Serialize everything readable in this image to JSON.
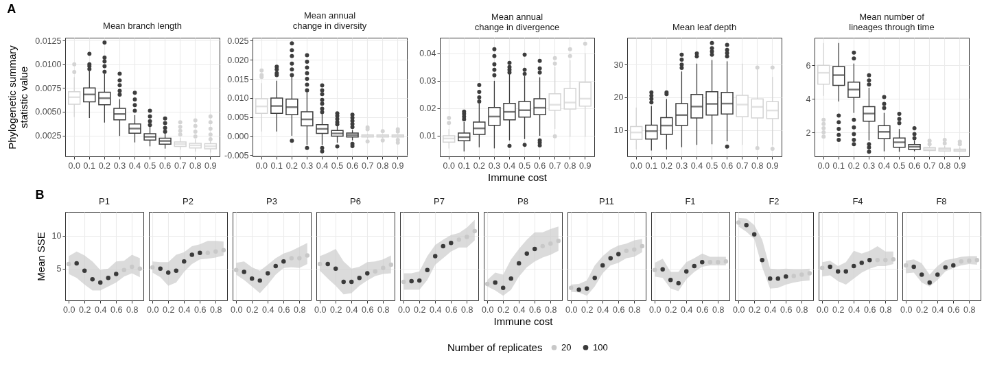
{
  "chart_data": [
    {
      "type": "box",
      "title": "Mean branch length",
      "ylabel": "Phylogenetic summary\nstatistic value",
      "annotations": [
        "A"
      ],
      "grid": true,
      "categories": [
        "0.0",
        "0.1",
        "0.2",
        "0.3",
        "0.4",
        "0.5",
        "0.6",
        "0.7",
        "0.8",
        "0.9"
      ],
      "colors": [
        "#d4d4d4",
        "#3d3d3d",
        "#3d3d3d",
        "#3d3d3d",
        "#3d3d3d",
        "#3d3d3d",
        "#3d3d3d",
        "#d4d4d4",
        "#d4d4d4",
        "#d4d4d4"
      ],
      "ylim": [
        0.0003,
        0.0128
      ],
      "yticks": [
        {
          "value": 0.0025,
          "label": "0.0025"
        },
        {
          "value": 0.005,
          "label": "0.0050"
        },
        {
          "value": 0.0075,
          "label": "0.0075"
        },
        {
          "value": 0.01,
          "label": "0.0100"
        },
        {
          "value": 0.0125,
          "label": "0.0125"
        }
      ],
      "boxes": [
        {
          "low": 0.00444,
          "q1": 0.0058,
          "median": 0.00653,
          "q3": 0.00711,
          "high": 0.00864,
          "outliers": [
            0.01,
            0.00918
          ]
        },
        {
          "low": 0.00434,
          "q1": 0.00604,
          "median": 0.00682,
          "q3": 0.0075,
          "high": 0.0093,
          "outliers": [
            0.0111,
            0.01,
            0.0098,
            0.0095
          ]
        },
        {
          "low": 0.00386,
          "q1": 0.00573,
          "median": 0.00643,
          "q3": 0.00706,
          "high": 0.009,
          "outliers": [
            0.0123,
            0.0107,
            0.0103,
            0.0098,
            0.0092
          ]
        },
        {
          "low": 0.00245,
          "q1": 0.00415,
          "median": 0.00476,
          "q3": 0.00536,
          "high": 0.00633,
          "outliers": [
            0.009,
            0.0083,
            0.0078,
            0.0072,
            0.0068
          ]
        },
        {
          "low": 0.00177,
          "q1": 0.00274,
          "median": 0.00323,
          "q3": 0.00371,
          "high": 0.00464,
          "outliers": [
            0.007,
            0.0063,
            0.0057,
            0.0051
          ]
        },
        {
          "low": 0.00136,
          "q1": 0.00202,
          "median": 0.00236,
          "q3": 0.00269,
          "high": 0.00354,
          "outliers": [
            0.0051,
            0.0045,
            0.004,
            0.0036
          ]
        },
        {
          "low": 0.00112,
          "q1": 0.00158,
          "median": 0.00192,
          "q3": 0.00221,
          "high": 0.00269,
          "outliers": [
            0.0043,
            0.0038,
            0.0033,
            0.0029
          ]
        },
        {
          "low": 0.001,
          "q1": 0.00134,
          "median": 0.0016,
          "q3": 0.00182,
          "high": 0.00226,
          "outliers": [
            0.0039,
            0.0034,
            0.003,
            0.0026
          ]
        },
        {
          "low": 0.0008,
          "q1": 0.00119,
          "median": 0.00146,
          "q3": 0.00168,
          "high": 0.00209,
          "outliers": [
            0.0041,
            0.0035,
            0.0029,
            0.0024
          ]
        },
        {
          "low": 0.0007,
          "q1": 0.0011,
          "median": 0.00136,
          "q3": 0.00163,
          "high": 0.00197,
          "outliers": [
            0.0045,
            0.0039,
            0.0032,
            0.0026,
            0.0021
          ]
        }
      ]
    },
    {
      "type": "box",
      "title": "Mean annual\nchange in diversity",
      "grid": true,
      "categories": [
        "0.0",
        "0.1",
        "0.2",
        "0.3",
        "0.4",
        "0.5",
        "0.6",
        "0.7",
        "0.8",
        "0.9"
      ],
      "colors": [
        "#d4d4d4",
        "#3d3d3d",
        "#3d3d3d",
        "#3d3d3d",
        "#3d3d3d",
        "#3d3d3d",
        "#3d3d3d",
        "#d4d4d4",
        "#d4d4d4",
        "#d4d4d4"
      ],
      "ylim": [
        -0.0053,
        0.0258
      ],
      "yticks": [
        {
          "value": -0.005,
          "label": "-0.005"
        },
        {
          "value": 0,
          "label": "0.000"
        },
        {
          "value": 0.005,
          "label": "0.005"
        },
        {
          "value": 0.01,
          "label": "0.010"
        },
        {
          "value": 0.015,
          "label": "0.015"
        },
        {
          "value": 0.02,
          "label": "0.020"
        },
        {
          "value": 0.025,
          "label": "0.025"
        }
      ],
      "boxes": [
        {
          "low": 0.0012,
          "q1": 0.006,
          "median": 0.0078,
          "q3": 0.0098,
          "high": 0.0139,
          "outliers": [
            0.0172,
            0.016,
            0.0155
          ]
        },
        {
          "low": 0.0012,
          "q1": 0.006,
          "median": 0.0079,
          "q3": 0.01,
          "high": 0.0145,
          "outliers": [
            0.0182,
            0.0175,
            0.0165,
            0.016
          ]
        },
        {
          "low": 0.0001,
          "q1": 0.0056,
          "median": 0.0076,
          "q3": 0.0097,
          "high": 0.0157,
          "outliers": [
            0.0243,
            0.0225,
            0.021,
            0.019,
            0.0175,
            0.016,
            -0.0012
          ]
        },
        {
          "low": -0.0023,
          "q1": 0.0027,
          "median": 0.0044,
          "q3": 0.0064,
          "high": 0.0115,
          "outliers": [
            0.0212,
            0.0195,
            0.018,
            0.0165,
            0.015,
            0.0135,
            0.012,
            -0.0031
          ]
        },
        {
          "low": -0.0023,
          "q1": 0.0007,
          "median": 0.0019,
          "q3": 0.003,
          "high": 0.0058,
          "outliers": [
            0.0133,
            0.012,
            0.011,
            0.0095,
            0.0085,
            0.0072,
            0.0063,
            -0.0031,
            -0.004
          ]
        },
        {
          "low": -0.0017,
          "q1": 0.0,
          "median": 0.0007,
          "q3": 0.0015,
          "high": 0.0028,
          "outliers": [
            0.006,
            0.0053,
            0.0045,
            0.0037,
            0.0031,
            -0.0027
          ]
        },
        {
          "low": -0.0011,
          "q1": -0.0002,
          "median": 0.0003,
          "q3": 0.0008,
          "high": 0.0016,
          "outliers": [
            0.0056,
            0.0048,
            0.004,
            0.0032,
            0.0024,
            -0.002,
            -0.0026
          ]
        },
        {
          "low": -0.0006,
          "q1": -0.0002,
          "median": 0.0001,
          "q3": 0.0003,
          "high": 0.0006,
          "outliers": [
            0.0023,
            0.0018,
            -0.0014
          ]
        },
        {
          "low": -0.0005,
          "q1": -0.0002,
          "median": 0.0001,
          "q3": 0.0003,
          "high": 0.0005,
          "outliers": [
            0.0013,
            -0.0011
          ]
        },
        {
          "low": -0.0005,
          "q1": -0.0002,
          "median": 0.0001,
          "q3": 0.0003,
          "high": 0.0005,
          "outliers": [
            0.0018,
            0.0012,
            -0.001,
            -0.0017
          ]
        }
      ]
    },
    {
      "type": "box",
      "title": "Mean annual\nchange in divergence",
      "xlabel": "Immune cost",
      "grid": true,
      "categories": [
        "0.0",
        "0.1",
        "0.2",
        "0.3",
        "0.4",
        "0.5",
        "0.6",
        "0.7",
        "0.8",
        "0.9"
      ],
      "colors": [
        "#d4d4d4",
        "#3d3d3d",
        "#3d3d3d",
        "#3d3d3d",
        "#3d3d3d",
        "#3d3d3d",
        "#3d3d3d",
        "#d4d4d4",
        "#d4d4d4",
        "#d4d4d4"
      ],
      "ylim": [
        0.0025,
        0.0457
      ],
      "yticks": [
        0.01,
        0.02,
        0.03,
        0.04
      ],
      "boxes": [
        {
          "low": 0.0054,
          "q1": 0.0077,
          "median": 0.009,
          "q3": 0.01,
          "high": 0.0125,
          "outliers": [
            0.0165,
            0.0147
          ]
        },
        {
          "low": 0.0043,
          "q1": 0.0082,
          "median": 0.0095,
          "q3": 0.011,
          "high": 0.015,
          "outliers": [
            0.0188,
            0.018,
            0.017,
            0.016
          ]
        },
        {
          "low": 0.0058,
          "q1": 0.0105,
          "median": 0.0127,
          "q3": 0.015,
          "high": 0.0217,
          "outliers": [
            0.0285,
            0.026,
            0.024,
            0.0225
          ]
        },
        {
          "low": 0.0054,
          "q1": 0.0138,
          "median": 0.017,
          "q3": 0.0203,
          "high": 0.03,
          "outliers": [
            0.0415,
            0.039,
            0.036,
            0.034,
            0.032
          ]
        },
        {
          "low": 0.0083,
          "q1": 0.0158,
          "median": 0.0187,
          "q3": 0.0218,
          "high": 0.0325,
          "outliers": [
            0.0365,
            0.035,
            0.034,
            0.033,
            0.0063
          ]
        },
        {
          "low": 0.0088,
          "q1": 0.0168,
          "median": 0.0193,
          "q3": 0.0225,
          "high": 0.0317,
          "outliers": [
            0.0395,
            0.034,
            0.0325,
            0.0067
          ]
        },
        {
          "low": 0.01,
          "q1": 0.0177,
          "median": 0.0202,
          "q3": 0.0235,
          "high": 0.0313,
          "outliers": [
            0.0373,
            0.0345,
            0.033,
            0.0083,
            0.0075,
            0.0065
          ]
        },
        {
          "low": 0.0125,
          "q1": 0.0193,
          "median": 0.0213,
          "q3": 0.0253,
          "high": 0.035,
          "outliers": [
            0.0383,
            0.0363,
            0.0098
          ]
        },
        {
          "low": 0.0096,
          "q1": 0.0197,
          "median": 0.0221,
          "q3": 0.0272,
          "high": 0.0375,
          "outliers": [
            0.0415,
            0.039
          ]
        },
        {
          "low": 0.0096,
          "q1": 0.0208,
          "median": 0.0235,
          "q3": 0.0295,
          "high": 0.04,
          "outliers": [
            0.0435
          ]
        }
      ]
    },
    {
      "type": "box",
      "title": "Mean leaf depth",
      "grid": true,
      "categories": [
        "0.0",
        "0.1",
        "0.2",
        "0.3",
        "0.4",
        "0.5",
        "0.6",
        "0.7",
        "0.8",
        "0.9"
      ],
      "colors": [
        "#d4d4d4",
        "#3d3d3d",
        "#3d3d3d",
        "#3d3d3d",
        "#3d3d3d",
        "#3d3d3d",
        "#3d3d3d",
        "#d4d4d4",
        "#d4d4d4",
        "#d4d4d4"
      ],
      "ylim": [
        2,
        38.2
      ],
      "yticks": [
        10,
        20,
        30
      ],
      "boxes": [
        {
          "low": 4.1,
          "q1": 7.2,
          "median": 9.3,
          "q3": 11.1,
          "high": 16.9
        },
        {
          "low": 3.8,
          "q1": 7.3,
          "median": 9.7,
          "q3": 11.5,
          "high": 17.4,
          "outliers": [
            21.5,
            20.5,
            19.5,
            18.5
          ]
        },
        {
          "low": 4.1,
          "q1": 8.7,
          "median": 11.4,
          "q3": 13.8,
          "high": 19.5,
          "outliers": [
            21.5,
            21
          ]
        },
        {
          "low": 4.8,
          "q1": 11.4,
          "median": 14.6,
          "q3": 18.1,
          "high": 27.9,
          "outliers": [
            33,
            31.5,
            30,
            29
          ]
        },
        {
          "low": 5.5,
          "q1": 13.7,
          "median": 17.2,
          "q3": 20.9,
          "high": 30.3,
          "outliers": [
            33.4,
            32.5
          ]
        },
        {
          "low": 5.7,
          "q1": 14.6,
          "median": 18,
          "q3": 21.7,
          "high": 31.4,
          "outliers": [
            36.6,
            35,
            34,
            33
          ]
        },
        {
          "low": 6.6,
          "q1": 14.9,
          "median": 18.1,
          "q3": 21.5,
          "high": 31,
          "outliers": [
            36,
            34.5,
            33.5,
            32.5,
            5
          ]
        },
        {
          "low": 5.5,
          "q1": 14.1,
          "median": 17.8,
          "q3": 20.6,
          "high": 30.3
        },
        {
          "low": 4.8,
          "q1": 13.7,
          "median": 17.1,
          "q3": 19.5,
          "high": 28.6,
          "outliers": [
            29.1,
            4.5
          ]
        },
        {
          "low": 5.5,
          "q1": 13.5,
          "median": 16,
          "q3": 18.7,
          "high": 26.2,
          "outliers": [
            29.1,
            4.3
          ]
        }
      ]
    },
    {
      "type": "box",
      "title": "Mean number of\nlineages through time",
      "grid": true,
      "categories": [
        "0.0",
        "0.1",
        "0.2",
        "0.3",
        "0.4",
        "0.5",
        "0.6",
        "0.7",
        "0.8",
        "0.9"
      ],
      "colors": [
        "#d4d4d4",
        "#3d3d3d",
        "#3d3d3d",
        "#3d3d3d",
        "#3d3d3d",
        "#3d3d3d",
        "#3d3d3d",
        "#d4d4d4",
        "#d4d4d4",
        "#d4d4d4"
      ],
      "ylim": [
        0.57,
        7.64
      ],
      "yticks": [
        2,
        4,
        6
      ],
      "boxes": [
        {
          "low": 4.18,
          "q1": 4.87,
          "median": 5.55,
          "q3": 6,
          "high": 7.32,
          "outliers": [
            2.75,
            2.5,
            2.25,
            2,
            1.75
          ]
        },
        {
          "low": 3.84,
          "q1": 4.8,
          "median": 5.41,
          "q3": 5.92,
          "high": 7.32,
          "outliers": [
            3,
            2.6,
            2.2,
            1.85,
            1.55
          ]
        },
        {
          "low": 3.16,
          "q1": 4.08,
          "median": 4.55,
          "q3": 4.99,
          "high": 6.1,
          "outliers": [
            6.75,
            6.4,
            2.75,
            2.3,
            1.9,
            1.55,
            1.3
          ]
        },
        {
          "low": 1.52,
          "q1": 2.66,
          "median": 3.12,
          "q3": 3.53,
          "high": 4.66,
          "outliers": [
            5.4,
            5.1,
            4.85,
            1.3,
            1.1,
            0.85
          ]
        },
        {
          "low": 0.87,
          "q1": 1.62,
          "median": 2.03,
          "q3": 2.4,
          "high": 3.16,
          "outliers": [
            4.1,
            3.7,
            3.45
          ]
        },
        {
          "low": 0.84,
          "q1": 1.11,
          "median": 1.41,
          "q3": 1.66,
          "high": 2.2,
          "outliers": [
            3.1,
            2.8,
            2.55
          ]
        },
        {
          "low": 0.87,
          "q1": 0.98,
          "median": 1.14,
          "q3": 1.28,
          "high": 1.52,
          "outliers": [
            2.25,
            1.9,
            1.65
          ]
        },
        {
          "low": 0.87,
          "q1": 0.92,
          "median": 1,
          "q3": 1.09,
          "high": 1.18,
          "outliers": [
            1.5,
            1.3
          ]
        },
        {
          "low": 0.85,
          "q1": 0.89,
          "median": 0.98,
          "q3": 1.06,
          "high": 1.18,
          "outliers": [
            1.55,
            1.35
          ]
        },
        {
          "low": 0.84,
          "q1": 0.88,
          "median": 0.94,
          "q3": 1,
          "high": 1.11,
          "outliers": [
            1.45,
            1.3
          ]
        }
      ]
    },
    {
      "type": "scatter",
      "title": "P1",
      "ylabel": "Mean SSE",
      "annotations": [
        "B"
      ],
      "legend": "bottom",
      "legend_title": "Number of replicates",
      "grid": true,
      "marker": "circle",
      "x": [
        0,
        0.1,
        0.2,
        0.3,
        0.4,
        0.5,
        0.6,
        0.7,
        0.8,
        0.9
      ],
      "xlim": [
        -0.045,
        0.945
      ],
      "xticks": [
        {
          "value": 0,
          "label": "0.0"
        },
        {
          "value": 0.2,
          "label": "0.2"
        },
        {
          "value": 0.4,
          "label": "0.4"
        },
        {
          "value": 0.6,
          "label": "0.6"
        },
        {
          "value": 0.8,
          "label": "0.8"
        }
      ],
      "ylim": [
        0.2,
        13.6
      ],
      "yticks": [
        5,
        10
      ],
      "series": [
        {
          "name": "20",
          "color": "#c8c8c8",
          "values": [
            5.7,
            null,
            null,
            null,
            null,
            null,
            null,
            4.8,
            5.3,
            5.0
          ],
          "lower": [
            4.2,
            3.6,
            2.6,
            1.7,
            1.7,
            2.3,
            2.9,
            3.8,
            4.3,
            3.7
          ],
          "upper": [
            6.9,
            7.6,
            7.0,
            6.1,
            4.8,
            5.0,
            6.1,
            6.2,
            7.1,
            6.6
          ]
        },
        {
          "name": "100",
          "color": "#3a3a3a",
          "values": [
            null,
            5.8,
            4.7,
            3.4,
            2.9,
            3.6,
            4.2,
            null,
            null,
            null
          ]
        }
      ]
    },
    {
      "type": "scatter",
      "title": "P2",
      "tick_labels": "x",
      "grid": true,
      "marker": "circle",
      "x": [
        0,
        0.1,
        0.2,
        0.3,
        0.4,
        0.5,
        0.6,
        0.7,
        0.8,
        0.9
      ],
      "xlim": [
        -0.045,
        0.945
      ],
      "xticks": [
        {
          "value": 0,
          "label": "0.0"
        },
        {
          "value": 0.2,
          "label": "0.2"
        },
        {
          "value": 0.4,
          "label": "0.4"
        },
        {
          "value": 0.6,
          "label": "0.6"
        },
        {
          "value": 0.8,
          "label": "0.8"
        }
      ],
      "ylim": [
        0.2,
        13.6
      ],
      "yticks": [
        5,
        10
      ],
      "series": [
        {
          "name": "20",
          "color": "#c8c8c8",
          "values": [
            5.2,
            null,
            null,
            null,
            null,
            null,
            null,
            7.4,
            7.6,
            7.8
          ],
          "lower": [
            4.4,
            3.7,
            2.4,
            2.9,
            4.5,
            5.7,
            6.4,
            6.5,
            6.7,
            7.0
          ],
          "upper": [
            6.1,
            6.0,
            6.0,
            7.1,
            7.5,
            8.4,
            8.7,
            9.2,
            9.2,
            9.1
          ]
        },
        {
          "name": "100",
          "color": "#3a3a3a",
          "values": [
            null,
            5.0,
            4.4,
            4.7,
            6.1,
            7.1,
            7.4,
            null,
            null,
            null
          ]
        }
      ]
    },
    {
      "type": "scatter",
      "title": "P3",
      "tick_labels": "x",
      "grid": true,
      "marker": "circle",
      "x": [
        0,
        0.1,
        0.2,
        0.3,
        0.4,
        0.5,
        0.6,
        0.7,
        0.8,
        0.9
      ],
      "xlim": [
        -0.045,
        0.945
      ],
      "xticks": [
        {
          "value": 0,
          "label": "0.0"
        },
        {
          "value": 0.2,
          "label": "0.2"
        },
        {
          "value": 0.4,
          "label": "0.4"
        },
        {
          "value": 0.6,
          "label": "0.6"
        },
        {
          "value": 0.8,
          "label": "0.8"
        }
      ],
      "ylim": [
        0.2,
        13.6
      ],
      "yticks": [
        5,
        10
      ],
      "series": [
        {
          "name": "20",
          "color": "#c8c8c8",
          "values": [
            4.8,
            null,
            null,
            null,
            null,
            null,
            null,
            6.6,
            6.6,
            7.0
          ],
          "lower": [
            4.1,
            3.3,
            2.3,
            1.3,
            2.6,
            4.1,
            5.1,
            5.2,
            5.1,
            5.7
          ],
          "upper": [
            5.9,
            6.1,
            5.2,
            4.7,
            5.6,
            6.6,
            7.3,
            7.7,
            8.3,
            8.9
          ]
        },
        {
          "name": "100",
          "color": "#3a3a3a",
          "values": [
            null,
            4.5,
            3.5,
            3.2,
            4.3,
            5.4,
            6.1,
            null,
            null,
            null
          ]
        }
      ]
    },
    {
      "type": "scatter",
      "title": "P6",
      "tick_labels": "x",
      "grid": true,
      "marker": "circle",
      "x": [
        0,
        0.1,
        0.2,
        0.3,
        0.4,
        0.5,
        0.6,
        0.7,
        0.8,
        0.9
      ],
      "xlim": [
        -0.045,
        0.945
      ],
      "xticks": [
        {
          "value": 0,
          "label": "0.0"
        },
        {
          "value": 0.2,
          "label": "0.2"
        },
        {
          "value": 0.4,
          "label": "0.4"
        },
        {
          "value": 0.6,
          "label": "0.6"
        },
        {
          "value": 0.8,
          "label": "0.8"
        }
      ],
      "ylim": [
        0.2,
        13.6
      ],
      "yticks": [
        5,
        10
      ],
      "series": [
        {
          "name": "20",
          "color": "#c8c8c8",
          "values": [
            5.7,
            null,
            null,
            null,
            null,
            null,
            null,
            4.6,
            5.1,
            5.6
          ],
          "lower": [
            4.7,
            3.5,
            2.4,
            1.1,
            1.3,
            2.4,
            3.2,
            3.9,
            4.2,
            4.3
          ],
          "upper": [
            6.9,
            7.4,
            8.0,
            6.1,
            5.0,
            5.3,
            6.0,
            6.1,
            6.4,
            7.0
          ]
        },
        {
          "name": "100",
          "color": "#3a3a3a",
          "values": [
            null,
            5.7,
            5.0,
            3.0,
            3.0,
            3.6,
            4.3,
            null,
            null,
            null
          ]
        }
      ]
    },
    {
      "type": "scatter",
      "title": "P7",
      "tick_labels": "x",
      "grid": true,
      "marker": "circle",
      "x": [
        0,
        0.1,
        0.2,
        0.3,
        0.4,
        0.5,
        0.6,
        0.7,
        0.8,
        0.9
      ],
      "xlim": [
        -0.045,
        0.945
      ],
      "xticks": [
        {
          "value": 0,
          "label": "0.0"
        },
        {
          "value": 0.2,
          "label": "0.2"
        },
        {
          "value": 0.4,
          "label": "0.4"
        },
        {
          "value": 0.6,
          "label": "0.6"
        },
        {
          "value": 0.8,
          "label": "0.8"
        }
      ],
      "ylim": [
        0.2,
        13.6
      ],
      "yticks": [
        5,
        10
      ],
      "series": [
        {
          "name": "20",
          "color": "#c8c8c8",
          "values": [
            3.0,
            null,
            null,
            null,
            null,
            null,
            null,
            9.4,
            9.8,
            10.7
          ],
          "lower": [
            1.8,
            1.8,
            1.8,
            3.3,
            5.6,
            6.6,
            7.6,
            8.2,
            8.2,
            9.3
          ],
          "upper": [
            4.3,
            4.3,
            4.6,
            6.9,
            8.6,
            9.4,
            10.1,
            10.4,
            11.2,
            12.4
          ]
        },
        {
          "name": "100",
          "color": "#3a3a3a",
          "values": [
            null,
            3.1,
            3.2,
            4.8,
            6.9,
            8.4,
            8.9,
            null,
            null,
            null
          ]
        }
      ]
    },
    {
      "type": "scatter",
      "title": "P8",
      "xlabel": "Immune cost",
      "tick_labels": "x",
      "grid": true,
      "marker": "circle",
      "x": [
        0,
        0.1,
        0.2,
        0.3,
        0.4,
        0.5,
        0.6,
        0.7,
        0.8,
        0.9
      ],
      "xlim": [
        -0.045,
        0.945
      ],
      "xticks": [
        {
          "value": 0,
          "label": "0.0"
        },
        {
          "value": 0.2,
          "label": "0.2"
        },
        {
          "value": 0.4,
          "label": "0.4"
        },
        {
          "value": 0.6,
          "label": "0.6"
        },
        {
          "value": 0.8,
          "label": "0.8"
        }
      ],
      "ylim": [
        0.2,
        13.6
      ],
      "yticks": [
        5,
        10
      ],
      "series": [
        {
          "name": "20",
          "color": "#c8c8c8",
          "values": [
            2.7,
            null,
            null,
            null,
            null,
            null,
            null,
            8.4,
            8.8,
            9.2
          ],
          "lower": [
            2.3,
            1.7,
            0.9,
            1.8,
            3.8,
            5.2,
            6.1,
            6.7,
            7.1,
            7.7
          ],
          "upper": [
            3.3,
            4.4,
            4.1,
            6.4,
            8.0,
            9.4,
            10.5,
            10.5,
            11.0,
            11.4
          ]
        },
        {
          "name": "100",
          "color": "#3a3a3a",
          "values": [
            null,
            2.9,
            2.1,
            3.5,
            5.8,
            7.3,
            8.0,
            null,
            null,
            null
          ]
        }
      ]
    },
    {
      "type": "scatter",
      "title": "P11",
      "tick_labels": "x",
      "grid": true,
      "marker": "circle",
      "x": [
        0,
        0.1,
        0.2,
        0.3,
        0.4,
        0.5,
        0.6,
        0.7,
        0.8,
        0.9
      ],
      "xlim": [
        -0.045,
        0.945
      ],
      "xticks": [
        {
          "value": 0,
          "label": "0.0"
        },
        {
          "value": 0.2,
          "label": "0.2"
        },
        {
          "value": 0.4,
          "label": "0.4"
        },
        {
          "value": 0.6,
          "label": "0.6"
        },
        {
          "value": 0.8,
          "label": "0.8"
        }
      ],
      "ylim": [
        0.2,
        13.6
      ],
      "yticks": [
        5,
        10
      ],
      "series": [
        {
          "name": "20",
          "color": "#c8c8c8",
          "values": [
            2.1,
            null,
            null,
            null,
            null,
            null,
            null,
            7.7,
            7.9,
            8.4
          ],
          "lower": [
            1.5,
            1.4,
            0.9,
            2.3,
            4.3,
            5.5,
            5.9,
            6.6,
            6.8,
            7.5
          ],
          "upper": [
            2.6,
            2.7,
            3.2,
            5.5,
            6.9,
            7.9,
            8.5,
            8.8,
            9.3,
            9.5
          ]
        },
        {
          "name": "100",
          "color": "#3a3a3a",
          "values": [
            null,
            1.8,
            2.0,
            3.6,
            5.5,
            6.6,
            7.2,
            null,
            null,
            null
          ]
        }
      ]
    },
    {
      "type": "scatter",
      "title": "F1",
      "tick_labels": "x",
      "grid": true,
      "marker": "circle",
      "x": [
        0,
        0.1,
        0.2,
        0.3,
        0.4,
        0.5,
        0.6,
        0.7,
        0.8,
        0.9
      ],
      "xlim": [
        -0.045,
        0.945
      ],
      "xticks": [
        {
          "value": 0,
          "label": "0.0"
        },
        {
          "value": 0.2,
          "label": "0.2"
        },
        {
          "value": 0.4,
          "label": "0.4"
        },
        {
          "value": 0.6,
          "label": "0.6"
        },
        {
          "value": 0.8,
          "label": "0.8"
        }
      ],
      "ylim": [
        0.2,
        13.6
      ],
      "yticks": [
        5,
        10
      ],
      "series": [
        {
          "name": "20",
          "color": "#c8c8c8",
          "values": [
            4.8,
            null,
            null,
            null,
            null,
            null,
            null,
            6.0,
            6.0,
            6.1
          ],
          "lower": [
            3.8,
            3.6,
            2.0,
            1.6,
            3.4,
            4.5,
            5.3,
            5.5,
            5.5,
            5.5
          ],
          "upper": [
            5.9,
            6.5,
            4.5,
            4.5,
            6.0,
            6.6,
            7.3,
            6.8,
            6.8,
            6.8
          ]
        },
        {
          "name": "100",
          "color": "#3a3a3a",
          "values": [
            null,
            4.9,
            3.3,
            2.8,
            4.6,
            5.4,
            6.0,
            null,
            null,
            null
          ]
        }
      ]
    },
    {
      "type": "scatter",
      "title": "F2",
      "tick_labels": "x",
      "grid": true,
      "marker": "circle",
      "x": [
        0,
        0.1,
        0.2,
        0.3,
        0.4,
        0.5,
        0.6,
        0.7,
        0.8,
        0.9
      ],
      "xlim": [
        -0.045,
        0.945
      ],
      "xticks": [
        {
          "value": 0,
          "label": "0.0"
        },
        {
          "value": 0.2,
          "label": "0.2"
        },
        {
          "value": 0.4,
          "label": "0.4"
        },
        {
          "value": 0.6,
          "label": "0.6"
        },
        {
          "value": 0.8,
          "label": "0.8"
        }
      ],
      "ylim": [
        0.2,
        13.6
      ],
      "yticks": [
        5,
        10
      ],
      "series": [
        {
          "name": "20",
          "color": "#c8c8c8",
          "values": [
            12.0,
            null,
            null,
            null,
            null,
            null,
            null,
            3.9,
            4.1,
            4.3
          ],
          "lower": [
            11.4,
            10.6,
            9.5,
            5.2,
            2.0,
            2.1,
            2.6,
            2.9,
            3.1,
            3.2
          ],
          "upper": [
            12.7,
            12.6,
            11.6,
            9.4,
            5.0,
            4.9,
            5.0,
            4.9,
            4.9,
            5.0
          ]
        },
        {
          "name": "100",
          "color": "#3a3a3a",
          "values": [
            null,
            11.6,
            10.2,
            6.3,
            3.5,
            3.5,
            3.8,
            null,
            null,
            null
          ]
        }
      ]
    },
    {
      "type": "scatter",
      "title": "F4",
      "tick_labels": "x",
      "grid": true,
      "marker": "circle",
      "x": [
        0,
        0.1,
        0.2,
        0.3,
        0.4,
        0.5,
        0.6,
        0.7,
        0.8,
        0.9
      ],
      "xlim": [
        -0.045,
        0.945
      ],
      "xticks": [
        {
          "value": 0,
          "label": "0.0"
        },
        {
          "value": 0.2,
          "label": "0.2"
        },
        {
          "value": 0.4,
          "label": "0.4"
        },
        {
          "value": 0.6,
          "label": "0.6"
        },
        {
          "value": 0.8,
          "label": "0.8"
        }
      ],
      "ylim": [
        0.2,
        13.6
      ],
      "yticks": [
        5,
        10
      ],
      "series": [
        {
          "name": "20",
          "color": "#c8c8c8",
          "values": [
            5.1,
            null,
            null,
            null,
            null,
            null,
            null,
            6.3,
            6.3,
            6.4
          ],
          "lower": [
            3.8,
            4.0,
            3.1,
            2.6,
            3.5,
            4.4,
            5.0,
            5.4,
            5.4,
            5.7
          ],
          "upper": [
            6.0,
            6.2,
            5.4,
            6.0,
            7.7,
            7.3,
            7.7,
            8.4,
            7.6,
            7.6
          ]
        },
        {
          "name": "100",
          "color": "#3a3a3a",
          "values": [
            null,
            5.3,
            4.6,
            4.6,
            5.4,
            5.9,
            6.3,
            null,
            null,
            null
          ]
        }
      ]
    },
    {
      "type": "scatter",
      "title": "F8",
      "tick_labels": "x",
      "grid": true,
      "marker": "circle",
      "x": [
        0,
        0.1,
        0.2,
        0.3,
        0.4,
        0.5,
        0.6,
        0.7,
        0.8,
        0.9
      ],
      "xlim": [
        -0.045,
        0.945
      ],
      "xticks": [
        {
          "value": 0,
          "label": "0.0"
        },
        {
          "value": 0.2,
          "label": "0.2"
        },
        {
          "value": 0.4,
          "label": "0.4"
        },
        {
          "value": 0.6,
          "label": "0.6"
        },
        {
          "value": 0.8,
          "label": "0.8"
        }
      ],
      "ylim": [
        0.2,
        13.6
      ],
      "yticks": [
        5,
        10
      ],
      "series": [
        {
          "name": "20",
          "color": "#c8c8c8",
          "values": [
            5.5,
            null,
            null,
            null,
            null,
            null,
            null,
            6.1,
            6.2,
            6.3
          ],
          "lower": [
            4.3,
            4.4,
            2.9,
            2.3,
            3.3,
            4.6,
            5.1,
            5.5,
            5.7,
            5.6
          ],
          "upper": [
            6.2,
            6.4,
            5.8,
            4.1,
            5.4,
            6.3,
            6.5,
            6.8,
            6.9,
            6.9
          ]
        },
        {
          "name": "100",
          "color": "#3a3a3a",
          "values": [
            null,
            5.3,
            4.1,
            2.9,
            4.1,
            5.2,
            5.5,
            null,
            null,
            null
          ]
        }
      ]
    }
  ]
}
